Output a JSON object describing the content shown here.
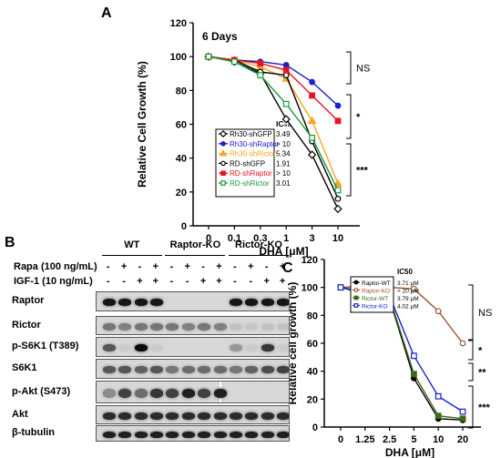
{
  "panels": {
    "a": "A",
    "b": "B",
    "c": "C"
  },
  "chart_data": [
    {
      "type": "line",
      "panel": "A",
      "annotation": "6 Days",
      "xlabel_prefix": "DHA [",
      "xlabel_unit": "μM",
      "xlabel_suffix": "]",
      "ylabel": "Relative Cell Growth (%)",
      "categories": [
        "0",
        "0.1",
        "0.3",
        "1",
        "3",
        "10"
      ],
      "ylim": [
        0,
        120
      ],
      "yticks": [
        0,
        20,
        40,
        60,
        80,
        100,
        120
      ],
      "ic_header": "IC₅₀",
      "series": [
        {
          "name": "Rh30-shGFP",
          "color": "#000000",
          "marker": "diamond-open",
          "ic50": "3.49",
          "values": [
            100,
            97,
            90,
            63,
            42,
            10
          ]
        },
        {
          "name": "Rh30-shRaptor",
          "color": "#1a22c8",
          "marker": "circle",
          "ic50": "> 10",
          "values": [
            100,
            98,
            97,
            95,
            85,
            71
          ]
        },
        {
          "name": "Rh30-shRictor",
          "color": "#f5a623",
          "marker": "triangle",
          "ic50": "5.34",
          "values": [
            100,
            98,
            94,
            87,
            62,
            25
          ]
        },
        {
          "name": "RD-shGFP",
          "color": "#000000",
          "marker": "circle-open",
          "ic50": "1.91",
          "values": [
            100,
            98,
            91,
            89,
            50,
            16
          ]
        },
        {
          "name": "RD-shRaptor",
          "color": "#e8141d",
          "marker": "square",
          "ic50": "> 10",
          "values": [
            100,
            98,
            96,
            92,
            77,
            62
          ]
        },
        {
          "name": "RD-shRictor",
          "color": "#1a9a3a",
          "marker": "square-open",
          "ic50": "3.01",
          "values": [
            100,
            97,
            89,
            72,
            52,
            21
          ]
        }
      ],
      "significance": [
        "NS",
        "*",
        "***"
      ]
    },
    {
      "type": "line",
      "panel": "C",
      "xlabel_prefix": "DHA [",
      "xlabel_unit": "μM",
      "xlabel_suffix": "]",
      "ylabel": "Relative cell growth (%)",
      "categories": [
        "0",
        "1.25",
        "2.5",
        "5",
        "10",
        "20"
      ],
      "ylim": [
        0,
        120
      ],
      "yticks": [
        0,
        20,
        40,
        60,
        80,
        100,
        120
      ],
      "ic_header": "IC50",
      "series": [
        {
          "name": "Raptor-WT",
          "color": "#000000",
          "marker": "circle",
          "ic50": "3.71 μM",
          "values": [
            100,
            96,
            92,
            35,
            6,
            5
          ]
        },
        {
          "name": "Raptor-KO",
          "color": "#a0522d",
          "marker": "circle-open",
          "ic50": "> 20 μM",
          "values": [
            100,
            101,
            100,
            99,
            83,
            60
          ]
        },
        {
          "name": "Rictor-WT",
          "color": "#3a6b1a",
          "marker": "square",
          "ic50": "3.79 μM",
          "values": [
            100,
            95,
            93,
            38,
            8,
            6
          ]
        },
        {
          "name": "Rictor-KO",
          "color": "#1a22c8",
          "marker": "square-open",
          "ic50": "4.02 μM",
          "values": [
            100,
            97,
            94,
            51,
            22,
            11
          ]
        }
      ],
      "significance": [
        "NS",
        "*",
        "**",
        "***"
      ]
    }
  ],
  "blot": {
    "groups": [
      "WT",
      "Raptor-KO",
      "Rictor-KO"
    ],
    "treatments": [
      {
        "label": "Rapa (100 ng/mL)",
        "signs": [
          "-",
          "+",
          "-",
          "+",
          "-",
          "+",
          "-",
          "+",
          "-",
          "+",
          "-",
          "+"
        ]
      },
      {
        "label": "IGF-1 (10 ng/mL)",
        "signs": [
          "-",
          "-",
          "+",
          "+",
          "-",
          "-",
          "+",
          "+",
          "-",
          "-",
          "+",
          "+"
        ]
      }
    ],
    "rows": [
      {
        "label": "Raptor",
        "intensity": [
          0.9,
          0.9,
          0.9,
          0.9,
          0,
          0,
          0,
          0,
          0.9,
          0.9,
          0.9,
          0.9
        ]
      },
      {
        "label": "Rictor",
        "intensity": [
          0.45,
          0.4,
          0.45,
          0.45,
          0.45,
          0.4,
          0.45,
          0.4,
          0.1,
          0.08,
          0.1,
          0.1
        ]
      },
      {
        "label": "p-S6K1 (T389)",
        "intensity": [
          0.6,
          0.05,
          0.95,
          0.05,
          0,
          0,
          0,
          0,
          0.3,
          0.05,
          0.75,
          0.05
        ]
      },
      {
        "label": "S6K1",
        "intensity": [
          0.6,
          0.6,
          0.55,
          0.6,
          0.45,
          0.5,
          0.5,
          0.5,
          0.45,
          0.55,
          0.65,
          0.7
        ]
      },
      {
        "label": "p-Akt (S473)",
        "intensity": [
          0.35,
          0.7,
          0.5,
          0.75,
          0.7,
          0.85,
          0.7,
          0.85,
          0,
          0,
          0,
          0
        ]
      },
      {
        "label": "Akt",
        "intensity": [
          0.8,
          0.8,
          0.8,
          0.8,
          0.8,
          0.8,
          0.8,
          0.8,
          0.8,
          0.8,
          0.8,
          0.8
        ]
      },
      {
        "label": "β-tubulin",
        "intensity": [
          0.85,
          0.85,
          0.85,
          0.85,
          0.85,
          0.85,
          0.85,
          0.85,
          0.85,
          0.85,
          0.85,
          0.85
        ]
      }
    ]
  }
}
